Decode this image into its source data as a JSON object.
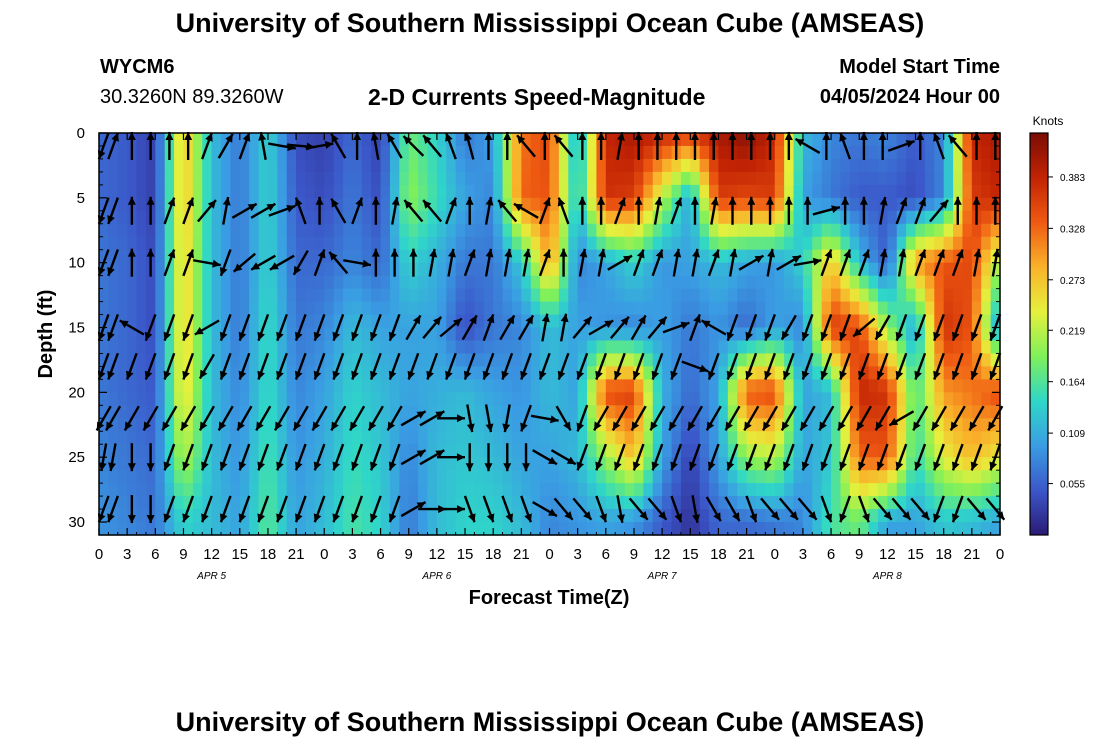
{
  "header": {
    "title": "University of Southern Mississippi Ocean Cube (AMSEAS)",
    "station_id": "WYCM6",
    "station_coords": "30.3260N  89.3260W",
    "plot_title": "2-D Currents Speed-Magnitude",
    "start_label": "Model Start Time",
    "start_value": "04/05/2024 Hour 00"
  },
  "footer": {
    "title": "University of Southern Mississippi Ocean Cube (AMSEAS)"
  },
  "colors": {
    "arrow": "#000000",
    "colormap": [
      "#2b1a75",
      "#3b57c9",
      "#3a9de3",
      "#2fd7c8",
      "#7ff05a",
      "#e6f03c",
      "#f9b22a",
      "#ef5a12",
      "#c22304",
      "#7a0c04"
    ]
  },
  "chart_data": {
    "type": "heatmap",
    "title": "2-D Currents Speed-Magnitude",
    "xlabel": "Forecast Time(Z)",
    "ylabel": "Depth (ft)",
    "x_ticks": [
      "0",
      "3",
      "6",
      "9",
      "12",
      "15",
      "18",
      "21",
      "0",
      "3",
      "6",
      "9",
      "12",
      "15",
      "18",
      "21",
      "0",
      "3",
      "6",
      "9",
      "12",
      "15",
      "18",
      "21",
      "0",
      "3",
      "6",
      "9",
      "12",
      "15",
      "18",
      "21",
      "0"
    ],
    "day_labels": [
      {
        "label": "APR 5",
        "hour": 12
      },
      {
        "label": "APR 6",
        "hour": 36
      },
      {
        "label": "APR 7",
        "hour": 60
      },
      {
        "label": "APR 8",
        "hour": 84
      }
    ],
    "xlim": [
      0,
      96
    ],
    "y_ticks": [
      0,
      5,
      10,
      15,
      20,
      25,
      30
    ],
    "ylim": [
      0,
      31
    ],
    "y_inverted": true,
    "colorbar": {
      "units": "Knots",
      "ticks": [
        0.055,
        0.109,
        0.164,
        0.219,
        0.273,
        0.328,
        0.383
      ],
      "range": [
        0.0,
        0.43
      ]
    },
    "speed_hours": [
      0,
      3,
      6,
      9,
      12,
      15,
      18,
      21,
      24,
      27,
      30,
      33,
      36,
      39,
      42,
      45,
      48,
      51,
      54,
      57,
      60,
      63,
      66,
      69,
      72,
      75,
      78,
      81,
      84,
      87,
      90,
      93,
      96
    ],
    "speed_depths": [
      0,
      5,
      10,
      15,
      20,
      25,
      30
    ],
    "speed": [
      [
        0.06,
        0.05,
        0.03,
        0.28,
        0.12,
        0.07,
        0.14,
        0.04,
        0.03,
        0.06,
        0.03,
        0.18,
        0.14,
        0.07,
        0.1,
        0.32,
        0.35,
        0.1,
        0.38,
        0.4,
        0.38,
        0.36,
        0.4,
        0.42,
        0.38,
        0.12,
        0.08,
        0.07,
        0.08,
        0.05,
        0.08,
        0.38,
        0.4
      ],
      [
        0.06,
        0.05,
        0.03,
        0.28,
        0.12,
        0.07,
        0.14,
        0.05,
        0.04,
        0.07,
        0.04,
        0.2,
        0.15,
        0.1,
        0.08,
        0.33,
        0.34,
        0.12,
        0.37,
        0.36,
        0.22,
        0.1,
        0.36,
        0.35,
        0.36,
        0.1,
        0.07,
        0.05,
        0.05,
        0.04,
        0.08,
        0.36,
        0.38
      ],
      [
        0.07,
        0.06,
        0.04,
        0.27,
        0.12,
        0.07,
        0.14,
        0.06,
        0.06,
        0.08,
        0.06,
        0.14,
        0.11,
        0.07,
        0.07,
        0.13,
        0.3,
        0.08,
        0.1,
        0.14,
        0.09,
        0.1,
        0.12,
        0.1,
        0.09,
        0.14,
        0.28,
        0.12,
        0.05,
        0.3,
        0.34,
        0.35,
        0.2
      ],
      [
        0.07,
        0.06,
        0.04,
        0.27,
        0.12,
        0.07,
        0.15,
        0.07,
        0.08,
        0.12,
        0.1,
        0.1,
        0.1,
        0.04,
        0.07,
        0.08,
        0.12,
        0.1,
        0.09,
        0.08,
        0.1,
        0.07,
        0.09,
        0.06,
        0.1,
        0.08,
        0.36,
        0.35,
        0.2,
        0.1,
        0.37,
        0.34,
        0.08
      ],
      [
        0.07,
        0.06,
        0.05,
        0.26,
        0.12,
        0.08,
        0.15,
        0.08,
        0.1,
        0.14,
        0.12,
        0.1,
        0.11,
        0.12,
        0.1,
        0.09,
        0.12,
        0.1,
        0.35,
        0.36,
        0.11,
        0.06,
        0.1,
        0.34,
        0.35,
        0.1,
        0.12,
        0.38,
        0.37,
        0.16,
        0.3,
        0.32,
        0.35
      ],
      [
        0.08,
        0.07,
        0.06,
        0.22,
        0.12,
        0.09,
        0.16,
        0.09,
        0.11,
        0.15,
        0.13,
        0.08,
        0.12,
        0.13,
        0.12,
        0.1,
        0.1,
        0.12,
        0.2,
        0.28,
        0.1,
        0.03,
        0.1,
        0.2,
        0.22,
        0.1,
        0.13,
        0.33,
        0.34,
        0.15,
        0.24,
        0.28,
        0.24
      ],
      [
        0.09,
        0.08,
        0.07,
        0.14,
        0.12,
        0.1,
        0.17,
        0.1,
        0.12,
        0.16,
        0.14,
        0.07,
        0.12,
        0.14,
        0.14,
        0.12,
        0.08,
        0.09,
        0.1,
        0.09,
        0.05,
        0.02,
        0.06,
        0.06,
        0.07,
        0.08,
        0.16,
        0.18,
        0.1,
        0.1,
        0.13,
        0.12,
        0.1
      ]
    ],
    "vector_hours": [
      0.5,
      1.5,
      3.5,
      5.5,
      7.5,
      9.5,
      11.5,
      13.5,
      15.5,
      17.5,
      19.5,
      21.5,
      23.5,
      25.5,
      27.5,
      29.5,
      31.5,
      33.5,
      35.5,
      37.5,
      39.5,
      41.5,
      43.5,
      45.5,
      47.5,
      49.5,
      51.5,
      53.5,
      55.5,
      57.5,
      59.5,
      61.5,
      63.5,
      65.5,
      67.5,
      69.5,
      71.5,
      73.5,
      75.5,
      77.5,
      79.5,
      81.5,
      83.5,
      85.5,
      87.5,
      89.5,
      91.5,
      93.5,
      95.5
    ],
    "vector_depths": [
      1,
      6,
      10,
      15,
      18,
      22,
      25,
      29
    ],
    "vector_directions_deg": [
      [
        200,
        20,
        0,
        0,
        0,
        0,
        20,
        30,
        20,
        350,
        100,
        95,
        80,
        330,
        0,
        350,
        330,
        315,
        320,
        340,
        345,
        0,
        0,
        320,
        0,
        320,
        0,
        0,
        10,
        0,
        0,
        0,
        0,
        0,
        0,
        0,
        0,
        0,
        300,
        0,
        340,
        0,
        0,
        70,
        0,
        340,
        320,
        0,
        0
      ],
      [
        200,
        200,
        0,
        0,
        20,
        20,
        40,
        10,
        60,
        60,
        70,
        340,
        0,
        330,
        20,
        0,
        10,
        320,
        320,
        20,
        0,
        10,
        320,
        300,
        20,
        340,
        0,
        0,
        20,
        0,
        10,
        20,
        0,
        10,
        0,
        0,
        0,
        0,
        0,
        75,
        0,
        0,
        10,
        20,
        20,
        40,
        0,
        0,
        0
      ],
      [
        200,
        200,
        0,
        0,
        20,
        20,
        100,
        200,
        230,
        240,
        240,
        210,
        20,
        320,
        100,
        0,
        0,
        0,
        10,
        10,
        20,
        10,
        10,
        10,
        20,
        0,
        10,
        10,
        60,
        20,
        20,
        10,
        10,
        20,
        10,
        60,
        10,
        60,
        80,
        20,
        20,
        20,
        10,
        10,
        20,
        20,
        20,
        10,
        10
      ],
      [
        200,
        200,
        300,
        200,
        200,
        200,
        240,
        200,
        200,
        200,
        200,
        200,
        200,
        200,
        200,
        200,
        200,
        30,
        40,
        50,
        30,
        20,
        30,
        30,
        10,
        10,
        40,
        60,
        40,
        30,
        40,
        70,
        20,
        300,
        200,
        200,
        200,
        210,
        200,
        200,
        200,
        230,
        210,
        200,
        200,
        200,
        200,
        200,
        200
      ],
      [
        200,
        200,
        200,
        200,
        200,
        200,
        210,
        200,
        200,
        200,
        200,
        200,
        200,
        200,
        200,
        200,
        200,
        200,
        200,
        200,
        200,
        200,
        200,
        200,
        200,
        200,
        200,
        200,
        200,
        200,
        200,
        200,
        110,
        200,
        200,
        200,
        200,
        200,
        200,
        200,
        200,
        200,
        200,
        200,
        200,
        200,
        200,
        200,
        200
      ],
      [
        210,
        210,
        210,
        210,
        210,
        210,
        210,
        210,
        210,
        210,
        210,
        210,
        210,
        210,
        210,
        210,
        210,
        60,
        60,
        90,
        170,
        170,
        190,
        200,
        100,
        150,
        200,
        210,
        210,
        210,
        210,
        210,
        210,
        210,
        210,
        210,
        210,
        210,
        210,
        210,
        210,
        210,
        210,
        240,
        210,
        210,
        210,
        210,
        210
      ],
      [
        190,
        190,
        180,
        180,
        200,
        200,
        200,
        200,
        200,
        200,
        200,
        200,
        200,
        200,
        200,
        200,
        200,
        60,
        60,
        90,
        180,
        180,
        180,
        180,
        120,
        120,
        200,
        200,
        200,
        200,
        200,
        200,
        200,
        200,
        200,
        200,
        200,
        200,
        200,
        200,
        200,
        200,
        200,
        200,
        200,
        200,
        200,
        200,
        200
      ],
      [
        200,
        200,
        180,
        180,
        200,
        200,
        200,
        200,
        200,
        200,
        200,
        200,
        200,
        200,
        200,
        200,
        200,
        60,
        90,
        90,
        160,
        160,
        160,
        160,
        120,
        140,
        140,
        160,
        170,
        140,
        140,
        160,
        170,
        150,
        150,
        160,
        140,
        140,
        140,
        160,
        200,
        160,
        140,
        140,
        140,
        200,
        200,
        140,
        140
      ]
    ]
  }
}
